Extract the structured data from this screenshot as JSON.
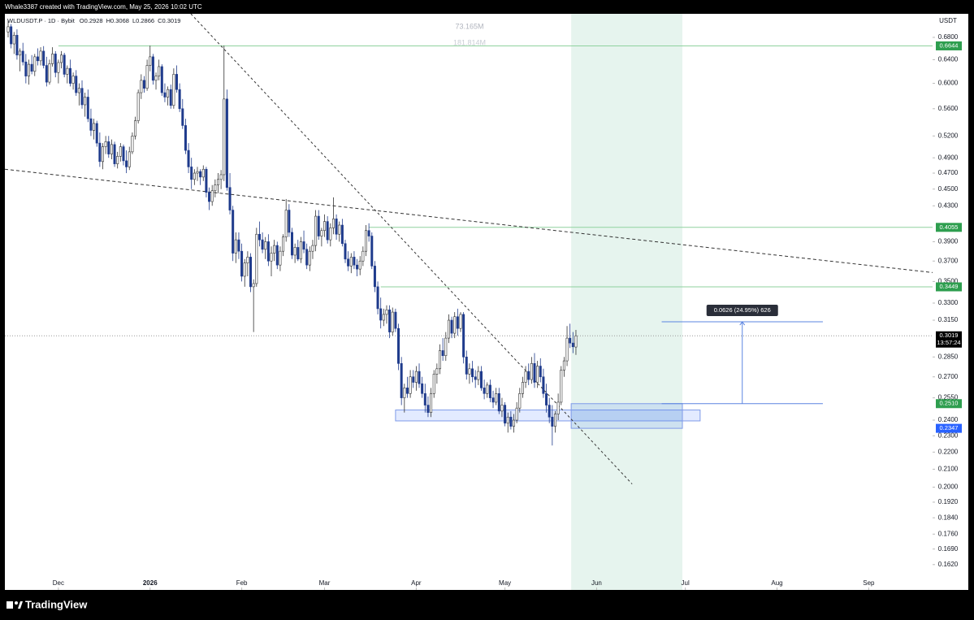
{
  "header": "Whale3387 created with TradingView.com, May 25, 2026 10:02 UTC",
  "branding": "TradingView",
  "chart_data": {
    "type": "candlestick",
    "symbol": "WLDUSDT.P · 1D · Bybit",
    "ohlc_legend": [
      "O0.2928",
      "H0.3068",
      "L0.2866",
      "C0.3019"
    ],
    "currency": "USDT",
    "volume_labels": [
      "73.165M",
      "181.814M"
    ],
    "up_color": "#ffffff",
    "down_color": "#1f3b8c",
    "outline_color": "#333333",
    "log_scale": true,
    "ylim": [
      0.1512,
      0.725
    ],
    "yticks": [
      {
        "value": 0.68,
        "label": "0.6800"
      },
      {
        "value": 0.64,
        "label": "0.6400"
      },
      {
        "value": 0.6,
        "label": "0.6000"
      },
      {
        "value": 0.56,
        "label": "0.5600"
      },
      {
        "value": 0.52,
        "label": "0.5200"
      },
      {
        "value": 0.49,
        "label": "0.4900"
      },
      {
        "value": 0.47,
        "label": "0.4700"
      },
      {
        "value": 0.45,
        "label": "0.4500"
      },
      {
        "value": 0.43,
        "label": "0.4300"
      },
      {
        "value": 0.39,
        "label": "0.3900"
      },
      {
        "value": 0.37,
        "label": "0.3700"
      },
      {
        "value": 0.35,
        "label": "0.3500"
      },
      {
        "value": 0.33,
        "label": "0.3300"
      },
      {
        "value": 0.315,
        "label": "0.3150"
      },
      {
        "value": 0.285,
        "label": "0.2850"
      },
      {
        "value": 0.27,
        "label": "0.2700"
      },
      {
        "value": 0.255,
        "label": "0.2550"
      },
      {
        "value": 0.24,
        "label": "0.2400"
      },
      {
        "value": 0.23,
        "label": "0.2300"
      },
      {
        "value": 0.22,
        "label": "0.2200"
      },
      {
        "value": 0.21,
        "label": "0.2100"
      },
      {
        "value": 0.2,
        "label": "0.2000"
      },
      {
        "value": 0.192,
        "label": "0.1920"
      },
      {
        "value": 0.184,
        "label": "0.1840"
      },
      {
        "value": 0.176,
        "label": "0.1760"
      },
      {
        "value": 0.169,
        "label": "0.1690"
      },
      {
        "value": 0.162,
        "label": "0.1620"
      }
    ],
    "xlim": [
      -1.1,
      312.6
    ],
    "xticks": [
      {
        "value": 17,
        "label": "Dec"
      },
      {
        "value": 48,
        "label": "2026"
      },
      {
        "value": 79,
        "label": "Feb"
      },
      {
        "value": 107,
        "label": "Mar"
      },
      {
        "value": 138,
        "label": "Apr"
      },
      {
        "value": 168,
        "label": "May"
      },
      {
        "value": 199,
        "label": "Jun"
      },
      {
        "value": 229,
        "label": "Jul"
      },
      {
        "value": 260,
        "label": "Aug"
      },
      {
        "value": 291,
        "label": "Sep"
      }
    ],
    "price_labels": [
      {
        "value": 0.6644,
        "label": "0.6644",
        "color": "#2e9e4f"
      },
      {
        "value": 0.4055,
        "label": "0.4055",
        "color": "#2e9e4f"
      },
      {
        "value": 0.3449,
        "label": "0.3449",
        "color": "#2e9e4f"
      },
      {
        "value": 0.3019,
        "label": "0.3019",
        "color": "#000000",
        "countdown": "13:57:24"
      },
      {
        "value": 0.251,
        "label": "0.2510",
        "color": "#2e9e4f"
      },
      {
        "value": 0.2347,
        "label": "0.2347",
        "color": "#2962ff"
      }
    ],
    "horizontal_lines": [
      {
        "value": 0.6644,
        "start": 17,
        "color": "#8fd19e"
      },
      {
        "value": 0.4055,
        "start": 122,
        "color": "#8fd19e"
      },
      {
        "value": 0.3449,
        "start": 126,
        "color": "#8fd19e"
      }
    ],
    "current_price": 0.3019,
    "trend_lines": [
      {
        "points": [
          [
            61.8,
            0.725
          ],
          [
            211,
            0.2017
          ]
        ],
        "dash": "3 3"
      },
      {
        "points": [
          [
            -1.1,
            0.475
          ],
          [
            312.6,
            0.3586
          ]
        ],
        "dash": "4 3"
      }
    ],
    "position_shade": {
      "x": [
        190.4,
        228
      ],
      "color": "#e6f4ee"
    },
    "zones": [
      {
        "x": [
          131,
          234
        ],
        "y": [
          0.2395,
          0.2467
        ]
      },
      {
        "x": [
          190.4,
          228
        ],
        "y": [
          0.2347,
          0.251
        ]
      }
    ],
    "measure": {
      "x": [
        221,
        275.5
      ],
      "from": 0.251,
      "to": 0.3136,
      "label": "0.0626 (24.95%) 626"
    },
    "ohlc": [
      [
        0.69,
        0.712,
        0.68,
        0.7
      ],
      [
        0.7,
        0.705,
        0.66,
        0.668
      ],
      [
        0.668,
        0.69,
        0.65,
        0.684
      ],
      [
        0.684,
        0.695,
        0.64,
        0.648
      ],
      [
        0.648,
        0.66,
        0.62,
        0.655
      ],
      [
        0.655,
        0.67,
        0.63,
        0.636
      ],
      [
        0.636,
        0.65,
        0.6,
        0.612
      ],
      [
        0.612,
        0.64,
        0.598,
        0.632
      ],
      [
        0.632,
        0.648,
        0.615,
        0.62
      ],
      [
        0.62,
        0.65,
        0.612,
        0.645
      ],
      [
        0.645,
        0.66,
        0.63,
        0.638
      ],
      [
        0.638,
        0.662,
        0.63,
        0.655
      ],
      [
        0.655,
        0.664,
        0.625,
        0.63
      ],
      [
        0.63,
        0.645,
        0.595,
        0.602
      ],
      [
        0.602,
        0.64,
        0.598,
        0.633
      ],
      [
        0.633,
        0.662,
        0.628,
        0.65
      ],
      [
        0.65,
        0.655,
        0.61,
        0.618
      ],
      [
        0.618,
        0.64,
        0.6,
        0.635
      ],
      [
        0.635,
        0.655,
        0.625,
        0.648
      ],
      [
        0.648,
        0.652,
        0.61,
        0.615
      ],
      [
        0.615,
        0.63,
        0.6,
        0.625
      ],
      [
        0.625,
        0.64,
        0.595,
        0.6
      ],
      [
        0.6,
        0.618,
        0.59,
        0.612
      ],
      [
        0.612,
        0.622,
        0.58,
        0.585
      ],
      [
        0.585,
        0.6,
        0.565,
        0.592
      ],
      [
        0.592,
        0.605,
        0.56,
        0.566
      ],
      [
        0.566,
        0.585,
        0.548,
        0.578
      ],
      [
        0.578,
        0.59,
        0.54,
        0.545
      ],
      [
        0.545,
        0.56,
        0.52,
        0.528
      ],
      [
        0.528,
        0.545,
        0.515,
        0.538
      ],
      [
        0.538,
        0.542,
        0.505,
        0.51
      ],
      [
        0.51,
        0.525,
        0.478,
        0.485
      ],
      [
        0.485,
        0.51,
        0.475,
        0.505
      ],
      [
        0.505,
        0.52,
        0.495,
        0.512
      ],
      [
        0.512,
        0.52,
        0.49,
        0.495
      ],
      [
        0.495,
        0.515,
        0.488,
        0.508
      ],
      [
        0.508,
        0.512,
        0.478,
        0.482
      ],
      [
        0.482,
        0.498,
        0.476,
        0.492
      ],
      [
        0.492,
        0.51,
        0.485,
        0.505
      ],
      [
        0.505,
        0.508,
        0.48,
        0.486
      ],
      [
        0.486,
        0.5,
        0.47,
        0.478
      ],
      [
        0.478,
        0.505,
        0.474,
        0.498
      ],
      [
        0.498,
        0.525,
        0.495,
        0.52
      ],
      [
        0.52,
        0.548,
        0.515,
        0.542
      ],
      [
        0.542,
        0.59,
        0.538,
        0.585
      ],
      [
        0.585,
        0.615,
        0.575,
        0.605
      ],
      [
        0.605,
        0.612,
        0.585,
        0.592
      ],
      [
        0.592,
        0.64,
        0.588,
        0.63
      ],
      [
        0.63,
        0.665,
        0.62,
        0.645
      ],
      [
        0.645,
        0.65,
        0.598,
        0.605
      ],
      [
        0.605,
        0.618,
        0.59,
        0.612
      ],
      [
        0.612,
        0.64,
        0.605,
        0.628
      ],
      [
        0.628,
        0.632,
        0.58,
        0.585
      ],
      [
        0.585,
        0.6,
        0.57,
        0.578
      ],
      [
        0.578,
        0.595,
        0.565,
        0.59
      ],
      [
        0.59,
        0.598,
        0.56,
        0.565
      ],
      [
        0.565,
        0.625,
        0.56,
        0.615
      ],
      [
        0.615,
        0.63,
        0.585,
        0.59
      ],
      [
        0.59,
        0.6,
        0.555,
        0.56
      ],
      [
        0.56,
        0.575,
        0.53,
        0.535
      ],
      [
        0.535,
        0.545,
        0.495,
        0.5
      ],
      [
        0.5,
        0.51,
        0.47,
        0.478
      ],
      [
        0.478,
        0.49,
        0.45,
        0.462
      ],
      [
        0.462,
        0.475,
        0.455,
        0.47
      ],
      [
        0.47,
        0.478,
        0.46,
        0.472
      ],
      [
        0.472,
        0.475,
        0.455,
        0.465
      ],
      [
        0.465,
        0.48,
        0.46,
        0.475
      ],
      [
        0.475,
        0.478,
        0.44,
        0.446
      ],
      [
        0.446,
        0.452,
        0.425,
        0.435
      ],
      [
        0.435,
        0.455,
        0.43,
        0.448
      ],
      [
        0.448,
        0.462,
        0.44,
        0.455
      ],
      [
        0.455,
        0.47,
        0.445,
        0.462
      ],
      [
        0.462,
        0.474,
        0.45,
        0.468
      ],
      [
        0.468,
        0.665,
        0.46,
        0.575
      ],
      [
        0.575,
        0.59,
        0.448,
        0.452
      ],
      [
        0.452,
        0.47,
        0.42,
        0.425
      ],
      [
        0.425,
        0.43,
        0.37,
        0.378
      ],
      [
        0.378,
        0.4,
        0.368,
        0.392
      ],
      [
        0.392,
        0.4,
        0.372,
        0.38
      ],
      [
        0.38,
        0.388,
        0.35,
        0.355
      ],
      [
        0.355,
        0.372,
        0.345,
        0.368
      ],
      [
        0.368,
        0.38,
        0.355,
        0.374
      ],
      [
        0.374,
        0.378,
        0.34,
        0.345
      ],
      [
        0.345,
        0.352,
        0.305,
        0.348
      ],
      [
        0.348,
        0.405,
        0.345,
        0.398
      ],
      [
        0.398,
        0.412,
        0.385,
        0.392
      ],
      [
        0.392,
        0.4,
        0.378,
        0.382
      ],
      [
        0.382,
        0.395,
        0.372,
        0.39
      ],
      [
        0.39,
        0.398,
        0.365,
        0.37
      ],
      [
        0.37,
        0.385,
        0.355,
        0.378
      ],
      [
        0.378,
        0.392,
        0.37,
        0.386
      ],
      [
        0.386,
        0.39,
        0.362,
        0.366
      ],
      [
        0.366,
        0.385,
        0.36,
        0.38
      ],
      [
        0.38,
        0.398,
        0.375,
        0.395
      ],
      [
        0.395,
        0.438,
        0.39,
        0.425
      ],
      [
        0.425,
        0.432,
        0.395,
        0.4
      ],
      [
        0.4,
        0.405,
        0.372,
        0.376
      ],
      [
        0.376,
        0.388,
        0.368,
        0.384
      ],
      [
        0.384,
        0.392,
        0.37,
        0.372
      ],
      [
        0.372,
        0.395,
        0.368,
        0.39
      ],
      [
        0.39,
        0.402,
        0.378,
        0.382
      ],
      [
        0.382,
        0.388,
        0.362,
        0.366
      ],
      [
        0.366,
        0.385,
        0.36,
        0.38
      ],
      [
        0.38,
        0.392,
        0.372,
        0.386
      ],
      [
        0.386,
        0.425,
        0.38,
        0.418
      ],
      [
        0.418,
        0.425,
        0.392,
        0.396
      ],
      [
        0.396,
        0.405,
        0.385,
        0.402
      ],
      [
        0.402,
        0.42,
        0.395,
        0.412
      ],
      [
        0.412,
        0.418,
        0.388,
        0.392
      ],
      [
        0.392,
        0.41,
        0.385,
        0.405
      ],
      [
        0.405,
        0.44,
        0.398,
        0.415
      ],
      [
        0.415,
        0.42,
        0.392,
        0.398
      ],
      [
        0.398,
        0.412,
        0.39,
        0.408
      ],
      [
        0.408,
        0.415,
        0.385,
        0.388
      ],
      [
        0.388,
        0.392,
        0.368,
        0.372
      ],
      [
        0.372,
        0.38,
        0.36,
        0.365
      ],
      [
        0.365,
        0.378,
        0.358,
        0.374
      ],
      [
        0.374,
        0.38,
        0.362,
        0.366
      ],
      [
        0.366,
        0.372,
        0.355,
        0.362
      ],
      [
        0.362,
        0.375,
        0.356,
        0.37
      ],
      [
        0.37,
        0.385,
        0.365,
        0.38
      ],
      [
        0.38,
        0.408,
        0.375,
        0.402
      ],
      [
        0.402,
        0.41,
        0.39,
        0.396
      ],
      [
        0.396,
        0.4,
        0.362,
        0.365
      ],
      [
        0.365,
        0.37,
        0.34,
        0.345
      ],
      [
        0.345,
        0.35,
        0.32,
        0.325
      ],
      [
        0.325,
        0.335,
        0.308,
        0.315
      ],
      [
        0.315,
        0.325,
        0.31,
        0.32
      ],
      [
        0.32,
        0.328,
        0.312,
        0.324
      ],
      [
        0.324,
        0.328,
        0.3,
        0.305
      ],
      [
        0.305,
        0.326,
        0.302,
        0.322
      ],
      [
        0.322,
        0.325,
        0.305,
        0.308
      ],
      [
        0.308,
        0.312,
        0.275,
        0.28
      ],
      [
        0.28,
        0.285,
        0.25,
        0.255
      ],
      [
        0.255,
        0.265,
        0.245,
        0.262
      ],
      [
        0.262,
        0.27,
        0.255,
        0.258
      ],
      [
        0.258,
        0.275,
        0.255,
        0.27
      ],
      [
        0.27,
        0.275,
        0.262,
        0.266
      ],
      [
        0.266,
        0.278,
        0.26,
        0.274
      ],
      [
        0.274,
        0.28,
        0.262,
        0.265
      ],
      [
        0.265,
        0.27,
        0.255,
        0.258
      ],
      [
        0.258,
        0.265,
        0.245,
        0.25
      ],
      [
        0.25,
        0.256,
        0.242,
        0.245
      ],
      [
        0.245,
        0.262,
        0.242,
        0.258
      ],
      [
        0.258,
        0.275,
        0.255,
        0.272
      ],
      [
        0.272,
        0.28,
        0.265,
        0.276
      ],
      [
        0.276,
        0.295,
        0.272,
        0.29
      ],
      [
        0.29,
        0.3,
        0.282,
        0.286
      ],
      [
        0.286,
        0.305,
        0.282,
        0.3
      ],
      [
        0.3,
        0.32,
        0.296,
        0.315
      ],
      [
        0.315,
        0.318,
        0.3,
        0.304
      ],
      [
        0.304,
        0.322,
        0.3,
        0.318
      ],
      [
        0.318,
        0.325,
        0.302,
        0.308
      ],
      [
        0.308,
        0.322,
        0.305,
        0.32
      ],
      [
        0.32,
        0.322,
        0.28,
        0.285
      ],
      [
        0.285,
        0.29,
        0.268,
        0.272
      ],
      [
        0.272,
        0.28,
        0.265,
        0.276
      ],
      [
        0.276,
        0.282,
        0.266,
        0.27
      ],
      [
        0.27,
        0.275,
        0.262,
        0.268
      ],
      [
        0.268,
        0.278,
        0.264,
        0.274
      ],
      [
        0.274,
        0.278,
        0.26,
        0.262
      ],
      [
        0.262,
        0.268,
        0.254,
        0.258
      ],
      [
        0.258,
        0.266,
        0.255,
        0.264
      ],
      [
        0.264,
        0.268,
        0.252,
        0.255
      ],
      [
        0.255,
        0.26,
        0.248,
        0.252
      ],
      [
        0.252,
        0.262,
        0.25,
        0.258
      ],
      [
        0.258,
        0.262,
        0.244,
        0.246
      ],
      [
        0.246,
        0.255,
        0.242,
        0.25
      ],
      [
        0.25,
        0.252,
        0.236,
        0.238
      ],
      [
        0.238,
        0.245,
        0.232,
        0.242
      ],
      [
        0.242,
        0.246,
        0.234,
        0.236
      ],
      [
        0.236,
        0.244,
        0.232,
        0.24
      ],
      [
        0.24,
        0.252,
        0.238,
        0.248
      ],
      [
        0.248,
        0.262,
        0.245,
        0.258
      ],
      [
        0.258,
        0.27,
        0.255,
        0.266
      ],
      [
        0.266,
        0.278,
        0.262,
        0.274
      ],
      [
        0.274,
        0.28,
        0.264,
        0.268
      ],
      [
        0.268,
        0.285,
        0.265,
        0.28
      ],
      [
        0.28,
        0.288,
        0.262,
        0.266
      ],
      [
        0.266,
        0.282,
        0.262,
        0.278
      ],
      [
        0.278,
        0.284,
        0.266,
        0.27
      ],
      [
        0.27,
        0.276,
        0.255,
        0.258
      ],
      [
        0.258,
        0.265,
        0.245,
        0.25
      ],
      [
        0.25,
        0.255,
        0.238,
        0.242
      ],
      [
        0.242,
        0.25,
        0.224,
        0.236
      ],
      [
        0.236,
        0.246,
        0.232,
        0.244
      ],
      [
        0.244,
        0.258,
        0.24,
        0.252
      ],
      [
        0.252,
        0.278,
        0.25,
        0.275
      ],
      [
        0.275,
        0.285,
        0.27,
        0.282
      ],
      [
        0.282,
        0.31,
        0.278,
        0.3
      ],
      [
        0.3,
        0.312,
        0.292,
        0.296
      ],
      [
        0.296,
        0.305,
        0.288,
        0.293
      ],
      [
        0.2928,
        0.3068,
        0.2866,
        0.3019
      ]
    ]
  }
}
